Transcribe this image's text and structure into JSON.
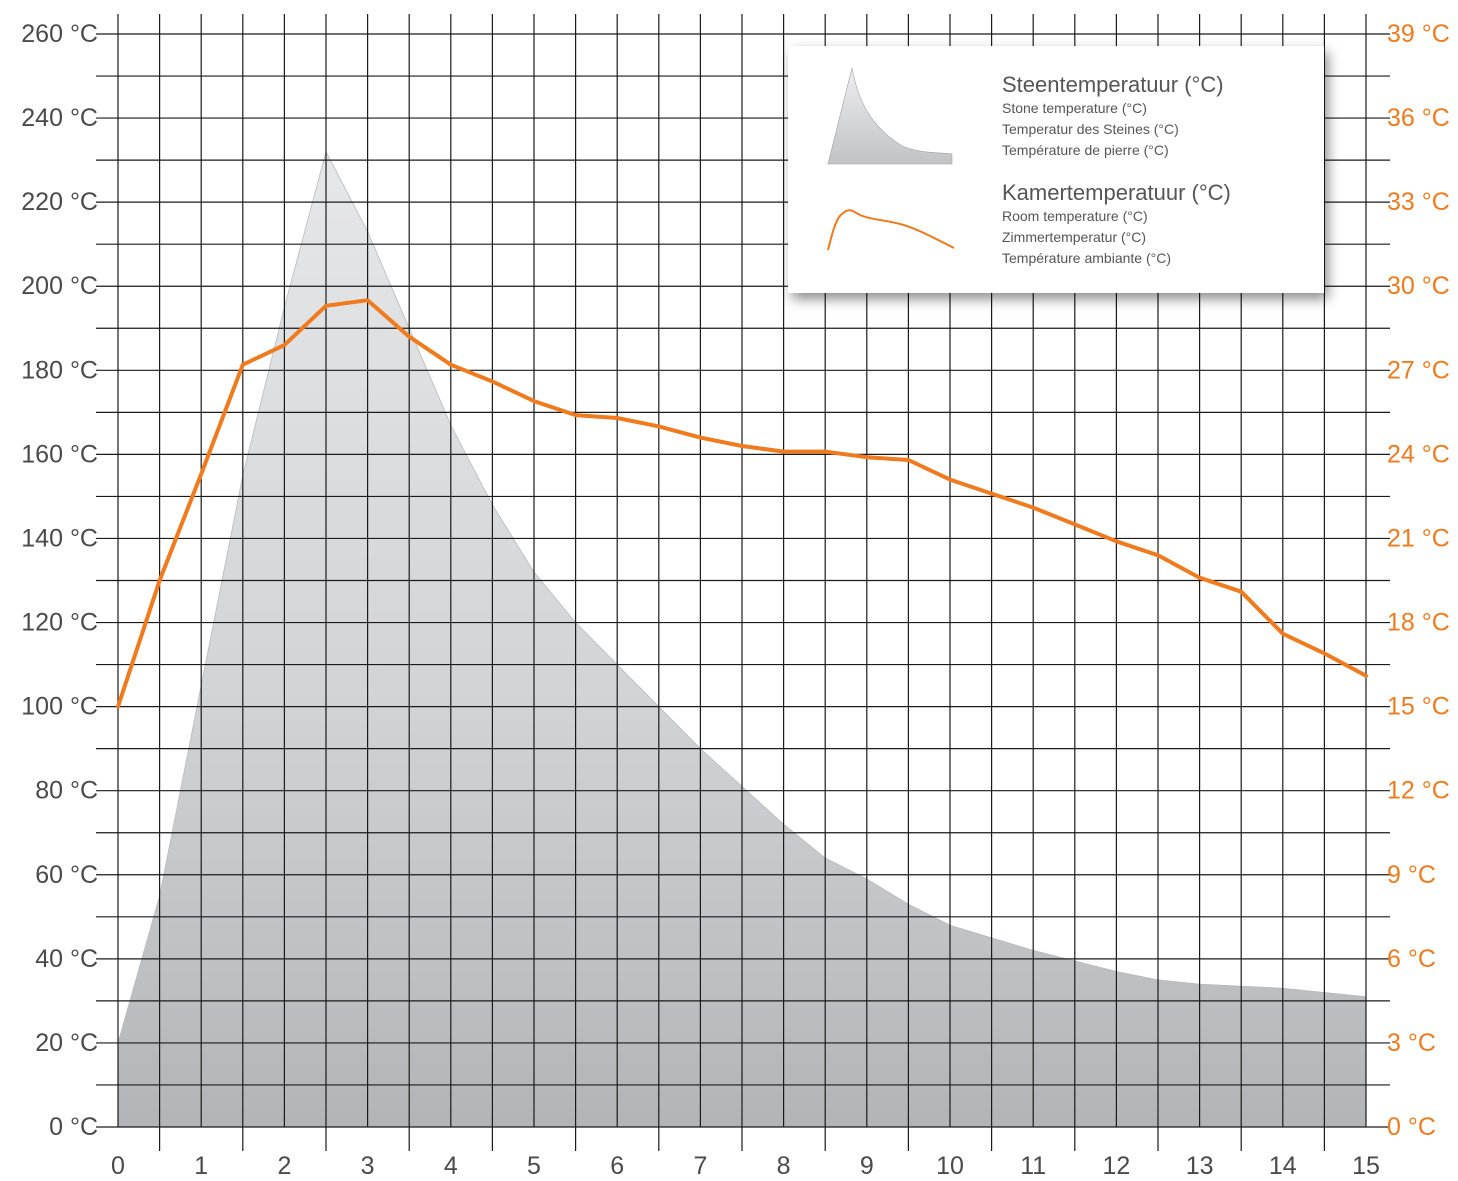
{
  "chart_data": {
    "type": "area",
    "x": [
      0,
      1,
      2,
      3,
      4,
      5,
      6,
      7,
      8,
      9,
      10,
      11,
      12,
      13,
      14,
      15
    ],
    "y_left_ticks": [
      "0 °C",
      "20 °C",
      "40 °C",
      "60 °C",
      "80 °C",
      "100 °C",
      "120 °C",
      "140 °C",
      "160 °C",
      "180 °C",
      "200 °C",
      "220 °C",
      "240 °C",
      "260 °C"
    ],
    "y_right_ticks": [
      "0 °C",
      "3 °C",
      "6 °C",
      "9 °C",
      "12 °C",
      "15 °C",
      "18 °C",
      "21 °C",
      "24 °C",
      "27 °C",
      "30 °C",
      "33 °C",
      "36 °C",
      "39 °C"
    ],
    "y_left_range": [
      0,
      260
    ],
    "y_right_range": [
      0,
      39
    ],
    "grid": true,
    "legend_position": "top-right",
    "series": [
      {
        "name": "Steentemperatuur (°C)",
        "axis": "left",
        "style": "area",
        "color": "#c8c9cb",
        "points": [
          [
            0,
            20
          ],
          [
            0.5,
            55
          ],
          [
            1,
            105
          ],
          [
            1.5,
            155
          ],
          [
            2,
            195
          ],
          [
            2.5,
            232
          ],
          [
            3,
            213
          ],
          [
            3.5,
            190
          ],
          [
            4,
            167
          ],
          [
            4.5,
            148
          ],
          [
            5,
            132
          ],
          [
            5.5,
            120
          ],
          [
            6,
            110
          ],
          [
            7,
            90
          ],
          [
            8,
            72
          ],
          [
            8.5,
            64
          ],
          [
            9,
            59
          ],
          [
            9.5,
            53
          ],
          [
            10,
            48
          ],
          [
            11,
            42
          ],
          [
            12,
            37
          ],
          [
            12.5,
            35
          ],
          [
            13,
            34
          ],
          [
            14,
            33
          ],
          [
            15,
            31
          ]
        ]
      },
      {
        "name": "Kamertemperatuur (°C)",
        "axis": "right",
        "style": "line",
        "color": "#f07a1e",
        "points": [
          [
            0,
            15
          ],
          [
            0.5,
            19.5
          ],
          [
            1,
            23.3
          ],
          [
            1.5,
            27.2
          ],
          [
            2,
            27.9
          ],
          [
            2.5,
            29.3
          ],
          [
            3,
            29.5
          ],
          [
            3.5,
            28.2
          ],
          [
            4,
            27.2
          ],
          [
            4.5,
            26.6
          ],
          [
            5,
            25.9
          ],
          [
            5.5,
            25.4
          ],
          [
            6,
            25.3
          ],
          [
            6.5,
            25.0
          ],
          [
            7,
            24.6
          ],
          [
            7.5,
            24.3
          ],
          [
            8,
            24.1
          ],
          [
            8.5,
            24.1
          ],
          [
            9,
            23.9
          ],
          [
            9.5,
            23.8
          ],
          [
            10,
            23.1
          ],
          [
            10.5,
            22.6
          ],
          [
            11,
            22.1
          ],
          [
            11.5,
            21.5
          ],
          [
            12,
            20.9
          ],
          [
            12.5,
            20.4
          ],
          [
            13,
            19.6
          ],
          [
            13.5,
            19.1
          ],
          [
            14,
            17.6
          ],
          [
            14.5,
            16.9
          ],
          [
            15,
            16.1
          ]
        ]
      }
    ]
  },
  "legend": {
    "stone": {
      "title": "Steentemperatuur (°C)",
      "sub_en": "Stone temperature (°C)",
      "sub_de": "Temperatur des Steines (°C)",
      "sub_fr": "Température de pierre (°C)"
    },
    "room": {
      "title": "Kamertemperatuur (°C)",
      "sub_en": "Room temperature (°C)",
      "sub_de": "Zimmertemperatur (°C)",
      "sub_fr": "Température ambiante (°C)"
    }
  },
  "colors": {
    "grid": "#1a1a1a",
    "area": "#c8c9cb",
    "line": "#f07a1e",
    "left_text": "#4a4a4a",
    "right_text": "#f07a1e"
  }
}
